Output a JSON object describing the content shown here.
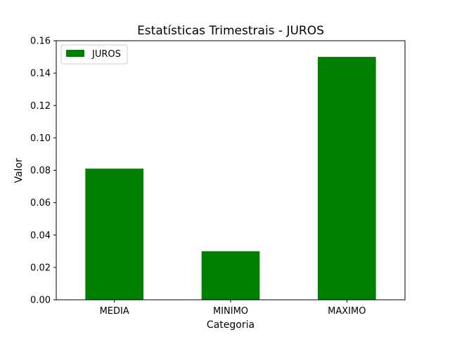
{
  "chart_data": {
    "type": "bar",
    "title": "Estatísticas Trimestrais - JUROS",
    "xlabel": "Categoria",
    "ylabel": "Valor",
    "categories": [
      "MEDIA",
      "MINIMO",
      "MAXIMO"
    ],
    "series": [
      {
        "name": "JUROS",
        "values": [
          0.081,
          0.03,
          0.15
        ],
        "color": "#008000"
      }
    ],
    "ylim": [
      0,
      0.16
    ],
    "yticks": [
      "0.00",
      "0.02",
      "0.04",
      "0.06",
      "0.08",
      "0.10",
      "0.12",
      "0.14",
      "0.16"
    ],
    "grid": false,
    "legend": "top-left"
  }
}
